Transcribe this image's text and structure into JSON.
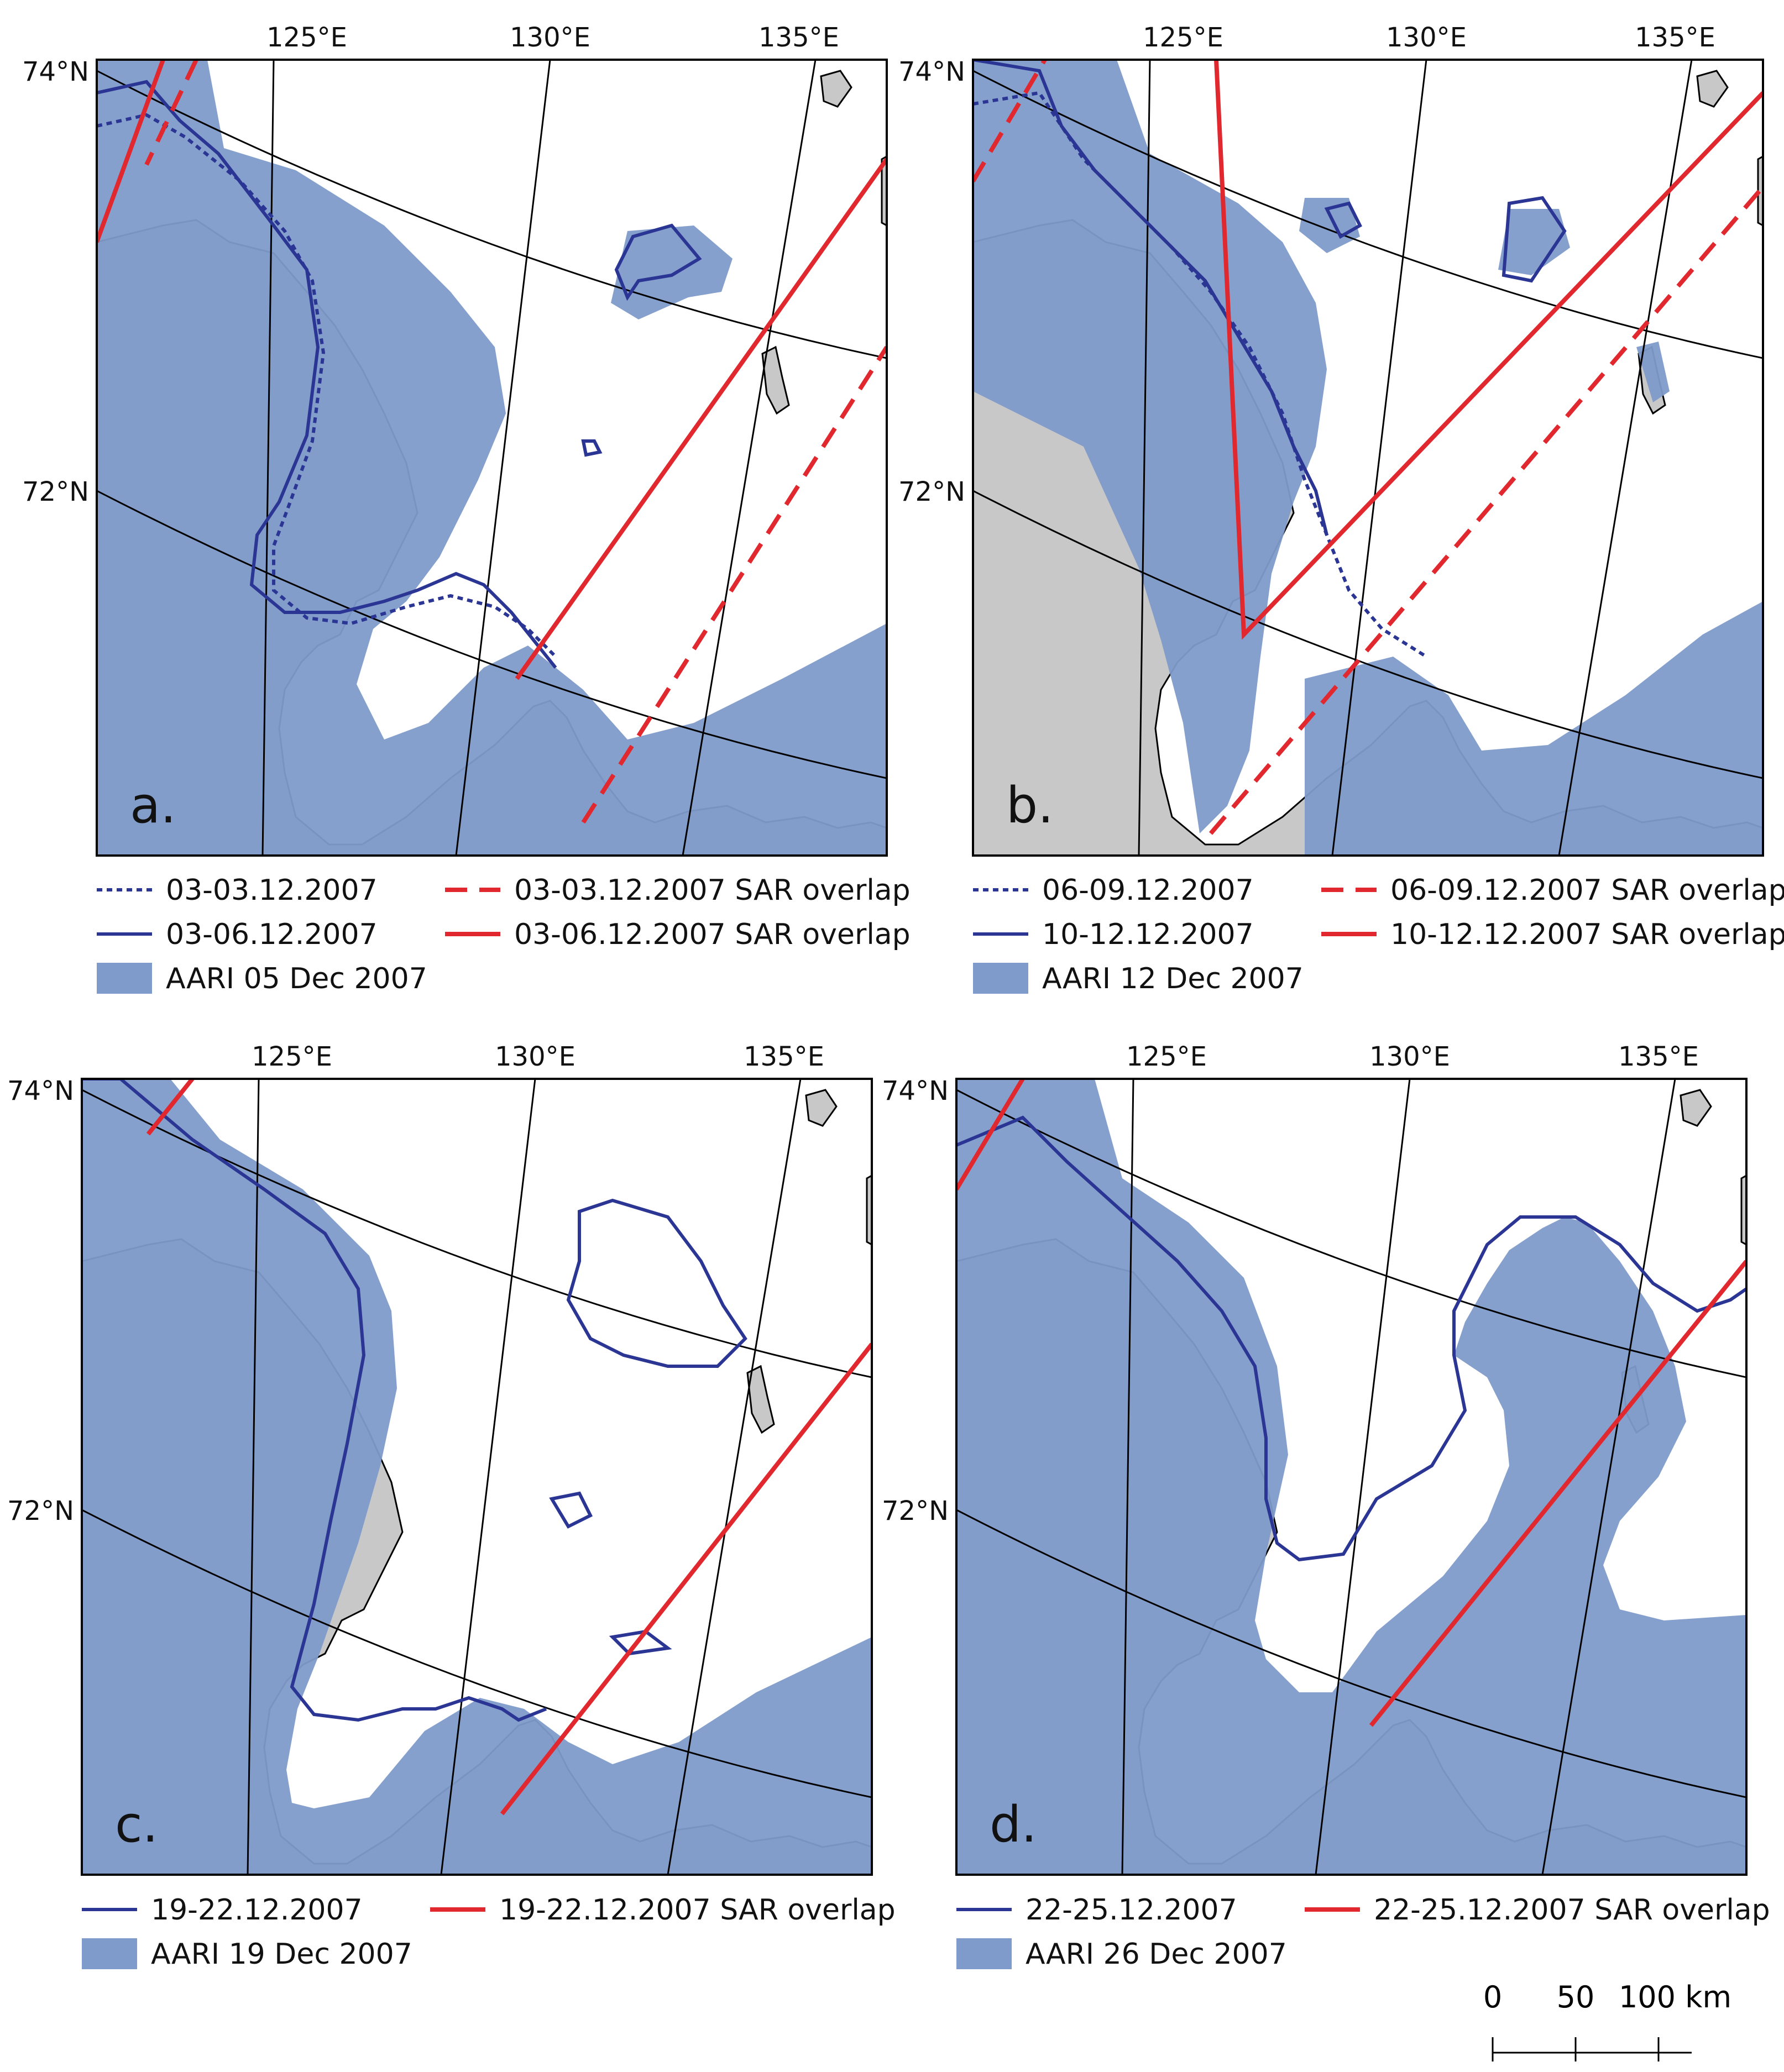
{
  "figure": {
    "colors": {
      "land": "#c8c8c8",
      "sea": "#ffffff",
      "aari_fill": "#7f9bcb",
      "contour": "#2b3594",
      "sar": "#e0282e",
      "grid": "#000000",
      "frame": "#000000"
    },
    "lat_labels": [
      "74°N",
      "72°N"
    ],
    "lon_labels": [
      "125°E",
      "130°E",
      "135°E"
    ],
    "panels": [
      {
        "letter": "a.",
        "legend": [
          {
            "label": "03-03.12.2007",
            "style": "blue-dotted"
          },
          {
            "label": "03-03.12.2007 SAR overlap",
            "style": "red-dashed"
          },
          {
            "label": "03-06.12.2007",
            "style": "blue-solid"
          },
          {
            "label": "03-06.12.2007 SAR overlap",
            "style": "red-solid"
          },
          {
            "label": "AARI 05 Dec 2007",
            "style": "fill"
          }
        ]
      },
      {
        "letter": "b.",
        "legend": [
          {
            "label": "06-09.12.2007",
            "style": "blue-dotted"
          },
          {
            "label": "06-09.12.2007 SAR overlap",
            "style": "red-dashed"
          },
          {
            "label": "10-12.12.2007",
            "style": "blue-solid"
          },
          {
            "label": "10-12.12.2007 SAR overlap",
            "style": "red-solid"
          },
          {
            "label": "AARI 12 Dec 2007",
            "style": "fill"
          }
        ]
      },
      {
        "letter": "c.",
        "legend": [
          {
            "label": "19-22.12.2007",
            "style": "blue-solid"
          },
          {
            "label": "19-22.12.2007 SAR overlap",
            "style": "red-solid"
          },
          {
            "label": "AARI 19 Dec 2007",
            "style": "fill"
          }
        ]
      },
      {
        "letter": "d.",
        "legend": [
          {
            "label": "22-25.12.2007",
            "style": "blue-solid"
          },
          {
            "label": "22-25.12.2007 SAR overlap",
            "style": "red-solid"
          },
          {
            "label": "AARI 26 Dec 2007",
            "style": "fill"
          }
        ]
      }
    ],
    "scale_bar": {
      "labels": [
        "0",
        "50",
        "100 km"
      ]
    }
  }
}
